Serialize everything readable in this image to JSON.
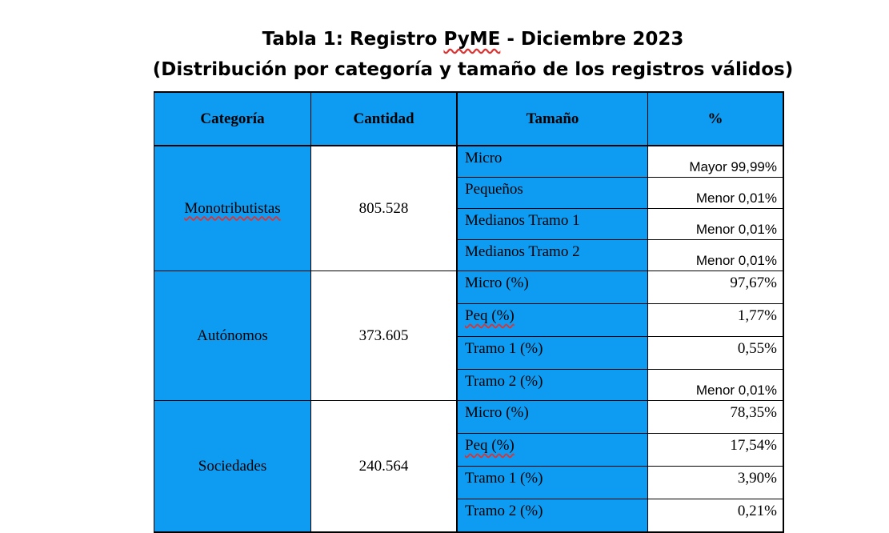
{
  "title": {
    "line1_prefix": "Tabla 1: Registro ",
    "line1_brand": "PyME",
    "line1_suffix": " - Diciembre 2023",
    "line2": "(Distribución por categoría y tamaño de los registros válidos)"
  },
  "table": {
    "headers": [
      "Categoría",
      "Cantidad",
      "Tamaño",
      "%"
    ],
    "groups": [
      {
        "categoria": "Monotributistas",
        "cantidad": "805.528",
        "rows": [
          {
            "tamano": "Micro",
            "pct": "Mayor 99,99%"
          },
          {
            "tamano": "Pequeños",
            "pct": "Menor 0,01%"
          },
          {
            "tamano": "Medianos Tramo 1",
            "pct": "Menor 0,01%"
          },
          {
            "tamano": "Medianos Tramo 2",
            "pct": "Menor 0,01%"
          }
        ]
      },
      {
        "categoria": "Autónomos",
        "cantidad": "373.605",
        "rows": [
          {
            "tamano": "Micro (%)",
            "pct": "97,67%"
          },
          {
            "tamano": "Peq (%)",
            "pct": "1,77%"
          },
          {
            "tamano": "Tramo 1 (%)",
            "pct": "0,55%"
          },
          {
            "tamano": "Tramo 2 (%)",
            "pct": "Menor 0,01%"
          }
        ]
      },
      {
        "categoria": "Sociedades",
        "cantidad": "240.564",
        "rows": [
          {
            "tamano": "Micro (%)",
            "pct": "78,35%"
          },
          {
            "tamano": "Peq (%)",
            "pct": "17,54%"
          },
          {
            "tamano": "Tramo 1 (%)",
            "pct": "3,90%"
          },
          {
            "tamano": "Tramo 2 (%)",
            "pct": "0,21%"
          }
        ]
      }
    ]
  },
  "colors": {
    "header_bg": "#0e9cf2",
    "cell_bg": "#ffffff",
    "spellcheck_underline": "#d33"
  }
}
